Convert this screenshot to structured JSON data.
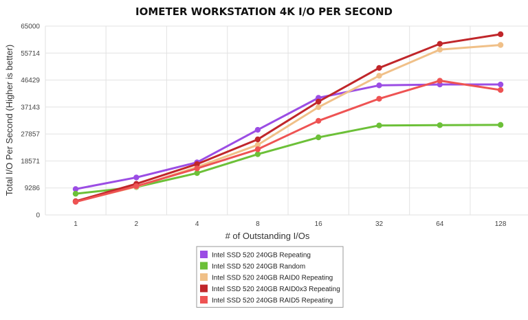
{
  "chart_data": {
    "type": "line",
    "title": "IOMETER WORKSTATION 4K I/O PER SECOND",
    "xlabel": "# of Outstanding I/Os",
    "ylabel": "Total I/O Per Second (Higher is better)",
    "categories": [
      "1",
      "2",
      "4",
      "8",
      "16",
      "32",
      "64",
      "128"
    ],
    "yticks": [
      "0",
      "9286",
      "18571",
      "27857",
      "37143",
      "46429",
      "55714",
      "65000"
    ],
    "ylim": [
      0,
      65000
    ],
    "grid": true,
    "legend_position": "bottom",
    "series": [
      {
        "name": "Intel SSD 520 240GB Repeating",
        "color": "#9b4de4",
        "values": [
          8900,
          12900,
          18100,
          29300,
          40300,
          44600,
          44900,
          44900
        ]
      },
      {
        "name": "Intel SSD 520 240GB Random",
        "color": "#6cc038",
        "values": [
          7300,
          9600,
          14400,
          20900,
          26700,
          30800,
          30900,
          31000
        ]
      },
      {
        "name": "Intel SSD 520 240GB RAID0 Repeating",
        "color": "#f0c088",
        "values": [
          4600,
          9700,
          16500,
          24100,
          37100,
          47900,
          56900,
          58500
        ]
      },
      {
        "name": "Intel SSD 520 240GB RAID0x3 Repeating",
        "color": "#c0262a",
        "values": [
          4700,
          10700,
          17500,
          26000,
          39000,
          50600,
          58900,
          62200
        ]
      },
      {
        "name": "Intel SSD 520 240GB RAID5 Repeating",
        "color": "#ee5353",
        "values": [
          4500,
          9900,
          16000,
          22600,
          32400,
          40000,
          46200,
          43000
        ]
      }
    ]
  }
}
